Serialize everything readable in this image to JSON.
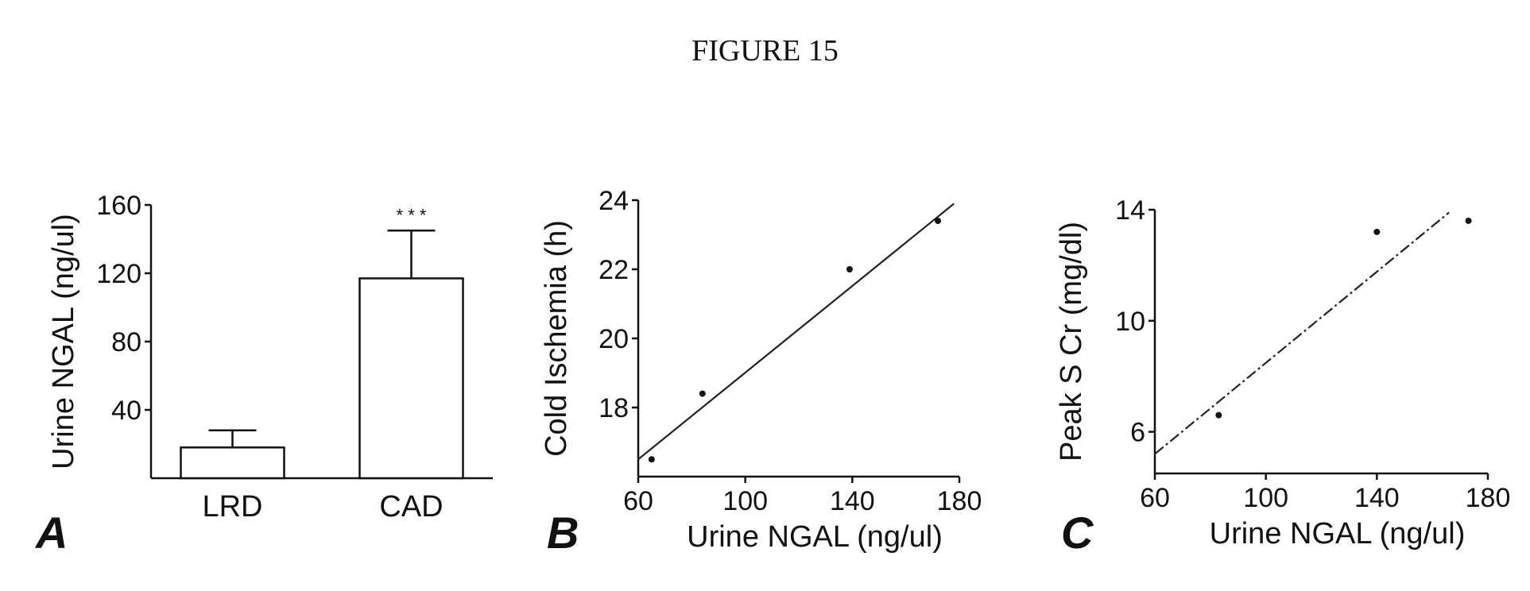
{
  "figure_title": "FIGURE 15",
  "chart_data": [
    {
      "panel": "A",
      "type": "bar",
      "categories": [
        "LRD",
        "CAD"
      ],
      "values": [
        18,
        117
      ],
      "errors": [
        10,
        28
      ],
      "ylabel": "Urine NGAL (ng/ul)",
      "xlabel": "",
      "ylim": [
        0,
        160
      ],
      "yticks": [
        40,
        80,
        120,
        160
      ],
      "annotation": "* * *"
    },
    {
      "panel": "B",
      "type": "scatter",
      "xlabel": "Urine NGAL (ng/ul)",
      "ylabel": "Cold Ischemia (h)",
      "xlim": [
        60,
        180
      ],
      "ylim": [
        16,
        24
      ],
      "xticks": [
        60,
        100,
        140,
        180
      ],
      "yticks": [
        18,
        20,
        22,
        24
      ],
      "x": [
        65,
        84,
        139,
        172
      ],
      "y": [
        16.5,
        18.4,
        22.0,
        23.4
      ],
      "fit": [
        [
          60,
          16.5
        ],
        [
          178,
          23.9
        ]
      ]
    },
    {
      "panel": "C",
      "type": "scatter",
      "xlabel": "Urine NGAL (ng/ul)",
      "ylabel": "Peak S Cr (mg/dl)",
      "xlim": [
        60,
        180
      ],
      "ylim": [
        4.5,
        14
      ],
      "xticks": [
        60,
        100,
        140,
        180
      ],
      "yticks": [
        6,
        10,
        14
      ],
      "x": [
        83,
        140,
        173
      ],
      "y": [
        6.6,
        13.2,
        13.6
      ],
      "fit": [
        [
          60,
          5.2
        ],
        [
          166,
          13.9
        ]
      ]
    }
  ]
}
